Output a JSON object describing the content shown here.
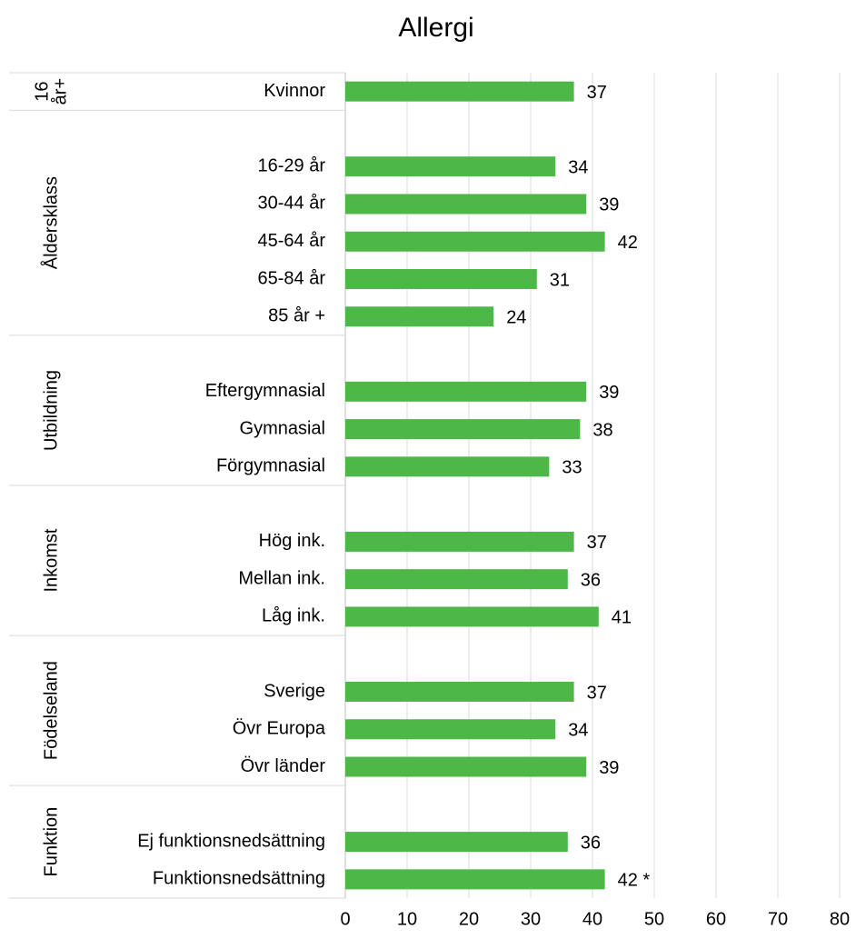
{
  "chart_data": {
    "type": "bar",
    "title": "Allergi",
    "groups": [
      {
        "label": [
          "16",
          "år+"
        ],
        "categories": [
          "Kvinnor"
        ],
        "values": [
          37
        ]
      },
      {
        "label": [
          "Åldersklass"
        ],
        "categories": [
          "16-29 år",
          "30-44 år",
          "45-64 år",
          "65-84 år",
          "85 år +"
        ],
        "values": [
          34,
          39,
          42,
          31,
          24
        ]
      },
      {
        "label": [
          "Utbildning"
        ],
        "categories": [
          "Eftergymnasial",
          "Gymnasial",
          "Förgymnasial"
        ],
        "values": [
          39,
          38,
          33
        ]
      },
      {
        "label": [
          "Inkomst"
        ],
        "categories": [
          "Hög ink.",
          "Mellan ink.",
          "Låg ink."
        ],
        "values": [
          37,
          36,
          41
        ]
      },
      {
        "label": [
          "Födelseland"
        ],
        "categories": [
          "Sverige",
          "Övr Europa",
          "Övr länder"
        ],
        "values": [
          37,
          34,
          39
        ]
      },
      {
        "label": [
          "Funktion"
        ],
        "categories": [
          "Ej funktionsnedsättning",
          "Funktionsnedsättning"
        ],
        "values": [
          36,
          42
        ],
        "value_labels": [
          "36",
          "42 *"
        ]
      }
    ],
    "color": "#4db748",
    "xlim": [
      0,
      80
    ],
    "xticks": [
      0,
      10,
      20,
      30,
      40,
      50,
      60,
      70,
      80
    ],
    "grid": true
  }
}
